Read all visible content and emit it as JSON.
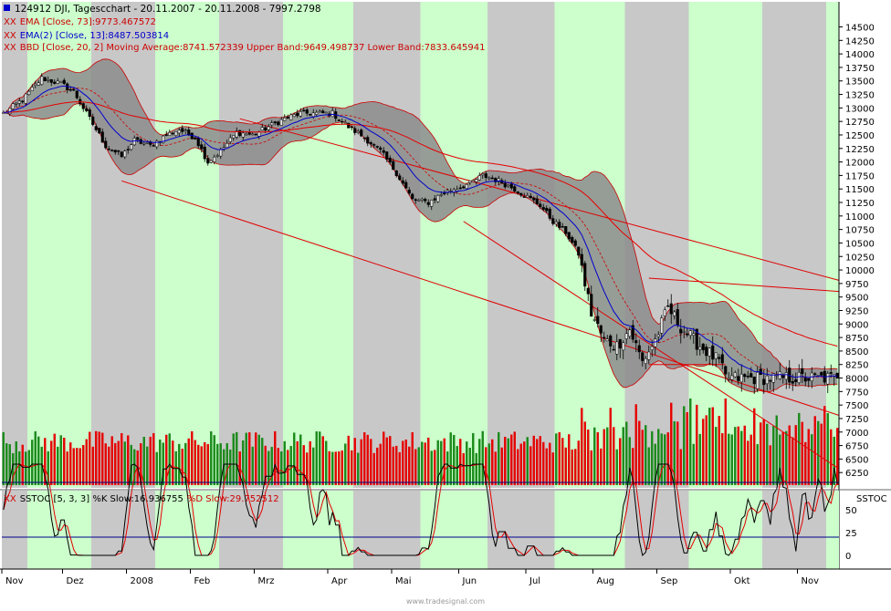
{
  "header": {
    "title_line": "124912  DJI, Tagescchart - 20.11.2007 - 20.11.2008 - 7997.2798",
    "ema73": "EMA [Close, 73]:9773.467572",
    "ema13": "EMA(2) [Close, 13]:8487.503814",
    "bbd": "BBD [Close, 20, 2] Moving Average:8741.572339 Upper Band:9649.498737 Lower Band:7833.645941",
    "stoch": "SSTOC [5, 3, 3] %K Slow:16.936755 %D Slow:29.752512",
    "stoch_k_label": "SSTOC [5, 3, 3] %K Slow:16.936755",
    "stoch_d_label": "%D Slow:29.752512",
    "stoch_axis_title": "SSTOC",
    "xx": "XX",
    "watermark": "www.tradesignal.com"
  },
  "colors": {
    "green_band": "#ccffcc",
    "gray_band": "#c8c8c8",
    "bollinger_fill": "#8c8c8c",
    "candle_up": "#e8e8e8",
    "candle_down": "#000000",
    "ema73": "#e60000",
    "ema13": "#0000cc",
    "bollinger_line": "#cc0000",
    "vol_up": "#1a8a1a",
    "vol_down": "#e60000",
    "stoch_k": "#000000",
    "stoch_d": "#e60000",
    "stoch_levels": "#00008b"
  },
  "chart_data": {
    "type": "candlestick",
    "symbol": "DJI",
    "period": "20.11.2007 - 20.11.2008",
    "last": 7997.2798,
    "y_ticks": [
      6250,
      6500,
      6750,
      7000,
      7250,
      7500,
      7750,
      8000,
      8250,
      8500,
      8750,
      9000,
      9250,
      9500,
      9750,
      10000,
      10250,
      10500,
      10750,
      11000,
      11250,
      11500,
      11750,
      12000,
      12250,
      12500,
      12750,
      13000,
      13250,
      13500,
      13750,
      14000,
      14250,
      14500
    ],
    "ylim": [
      6000,
      14800
    ],
    "x_labels": [
      "Nov",
      "Dez",
      "2008",
      "Feb",
      "Mrz",
      "Apr",
      "Mai",
      "Jun",
      "Jul",
      "Aug",
      "Sep",
      "Okt",
      "Nov"
    ],
    "x_label_days": [
      0,
      19,
      39,
      59,
      79,
      102,
      122,
      143,
      164,
      185,
      205,
      228,
      249
    ],
    "total_days": 262,
    "month_boundaries": [
      8,
      28,
      48,
      68,
      88,
      110,
      131,
      152,
      173,
      195,
      215,
      238,
      258
    ],
    "price_anchors": [
      [
        0,
        12900
      ],
      [
        6,
        13150
      ],
      [
        12,
        13550
      ],
      [
        18,
        13450
      ],
      [
        22,
        13300
      ],
      [
        27,
        12800
      ],
      [
        32,
        12300
      ],
      [
        37,
        12100
      ],
      [
        41,
        12400
      ],
      [
        46,
        12300
      ],
      [
        51,
        12500
      ],
      [
        55,
        12600
      ],
      [
        60,
        12450
      ],
      [
        64,
        12000
      ],
      [
        68,
        12200
      ],
      [
        73,
        12550
      ],
      [
        78,
        12500
      ],
      [
        83,
        12650
      ],
      [
        88,
        12800
      ],
      [
        93,
        12900
      ],
      [
        98,
        12900
      ],
      [
        103,
        12900
      ],
      [
        108,
        12650
      ],
      [
        113,
        12450
      ],
      [
        118,
        12200
      ],
      [
        123,
        11800
      ],
      [
        128,
        11300
      ],
      [
        133,
        11250
      ],
      [
        137,
        11400
      ],
      [
        141,
        11500
      ],
      [
        146,
        11600
      ],
      [
        150,
        11750
      ],
      [
        155,
        11650
      ],
      [
        160,
        11500
      ],
      [
        164,
        11350
      ],
      [
        168,
        11200
      ],
      [
        172,
        10900
      ],
      [
        176,
        10700
      ],
      [
        180,
        10300
      ],
      [
        184,
        9200
      ],
      [
        188,
        8700
      ],
      [
        192,
        8600
      ],
      [
        196,
        8900
      ],
      [
        200,
        8300
      ],
      [
        204,
        8700
      ],
      [
        208,
        9300
      ],
      [
        212,
        8950
      ],
      [
        216,
        8700
      ],
      [
        220,
        8500
      ],
      [
        224,
        8300
      ],
      [
        226,
        8000
      ]
    ],
    "stoch_y_ticks": [
      0,
      25,
      50
    ],
    "stoch_levels": [
      20,
      80
    ],
    "trendlines": [
      {
        "from": [
          37,
          11650
        ],
        "to": [
          262,
          7300
        ]
      },
      {
        "from": [
          144,
          10900
        ],
        "to": [
          262,
          6300
        ]
      },
      {
        "from": [
          74,
          12800
        ],
        "to": [
          262,
          9800
        ]
      },
      {
        "from": [
          202,
          9850
        ],
        "to": [
          262,
          9600
        ]
      },
      {
        "from": [
          202,
          8250
        ],
        "to": [
          226,
          8250
        ]
      }
    ]
  }
}
